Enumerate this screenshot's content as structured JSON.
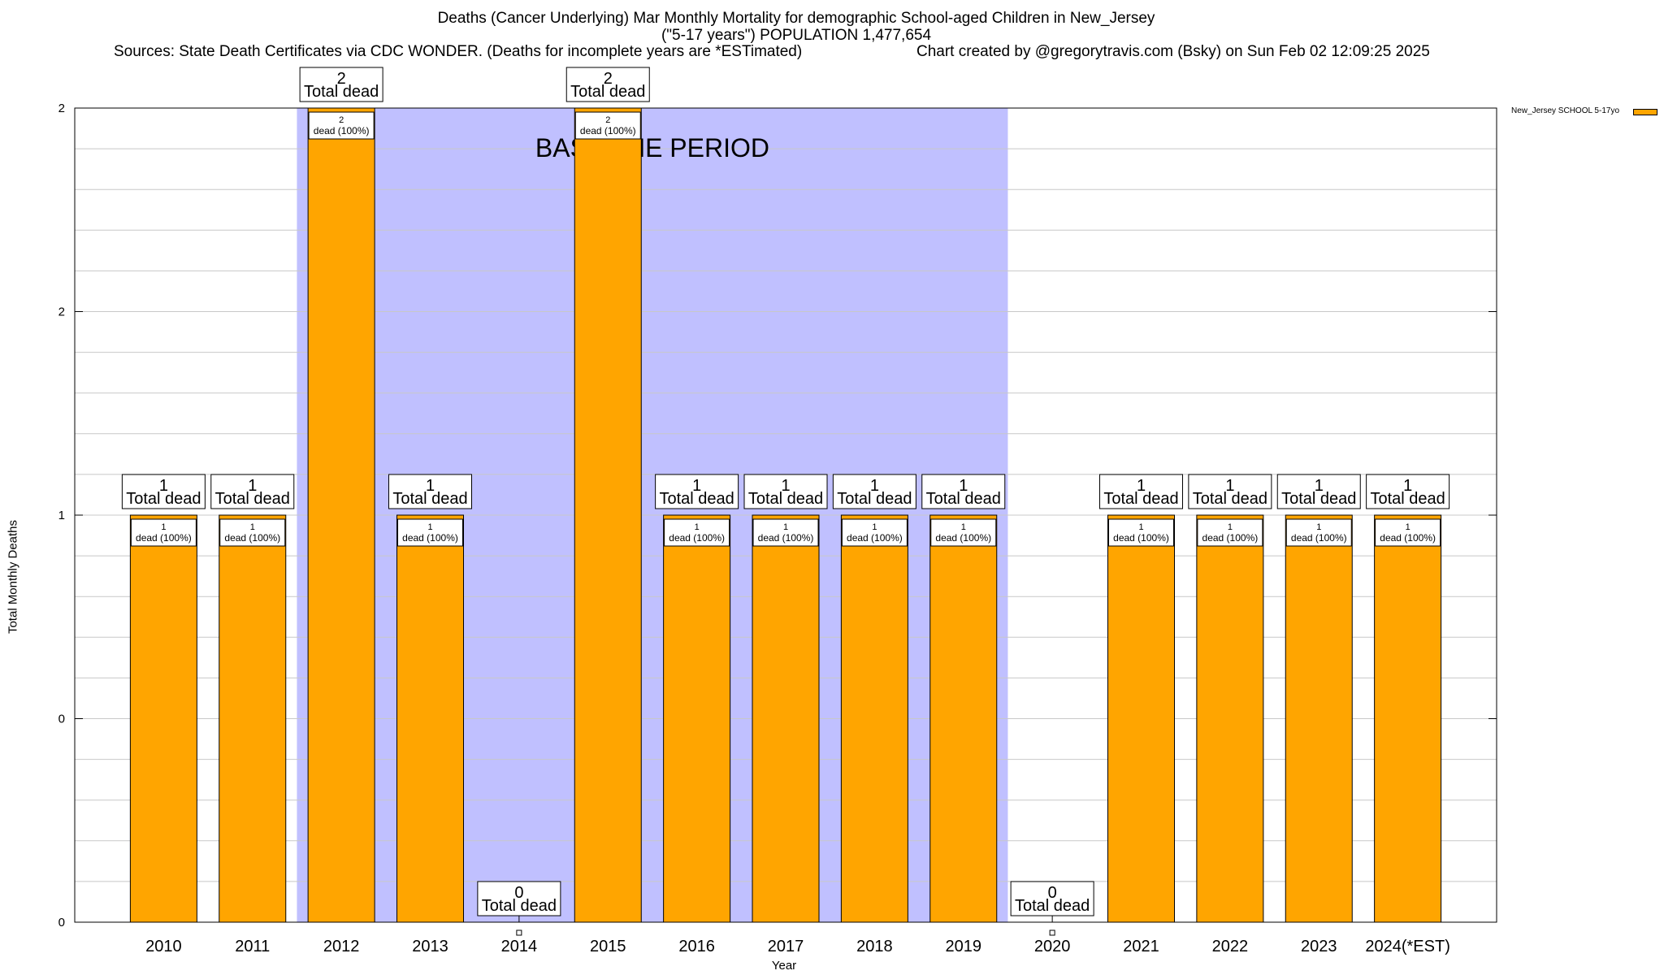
{
  "chart_data": {
    "type": "bar",
    "title_line1": "Deaths (Cancer Underlying) Mar Monthly Mortality for demographic School-aged Children in New_Jersey",
    "title_line2": "(\"5-17 years\") POPULATION 1,477,654",
    "sources": "Sources: State Death Certificates via CDC WONDER. (Deaths for incomplete years are *ESTimated)",
    "credit": "Chart created by @gregorytravis.com (Bsky) on Sun Feb 02 12:09:25 2025",
    "xlabel": "Year",
    "ylabel": "Total Monthly Deaths",
    "categories": [
      "2010",
      "2011",
      "2012",
      "2013",
      "2014",
      "2015",
      "2016",
      "2017",
      "2018",
      "2019",
      "2020",
      "2021",
      "2022",
      "2023",
      "2024(*EST)"
    ],
    "series": [
      {
        "name": "New_Jersey SCHOOL 5-17yo",
        "color": "#FFA500",
        "values": [
          1,
          1,
          2,
          1,
          0,
          2,
          1,
          1,
          1,
          1,
          0,
          1,
          1,
          1,
          1
        ]
      }
    ],
    "ylim": [
      0,
      2
    ],
    "y_tick_labels": [
      "0",
      "0",
      "1",
      "2",
      "2"
    ],
    "total_label_text": "Total dead",
    "inner_label_text": "dead (100%)",
    "baseline": {
      "label": "BASELINE PERIOD",
      "from": "2012",
      "to": "2019",
      "color": "#C0C0FF"
    },
    "grid": true,
    "legend_position": "top-right"
  }
}
